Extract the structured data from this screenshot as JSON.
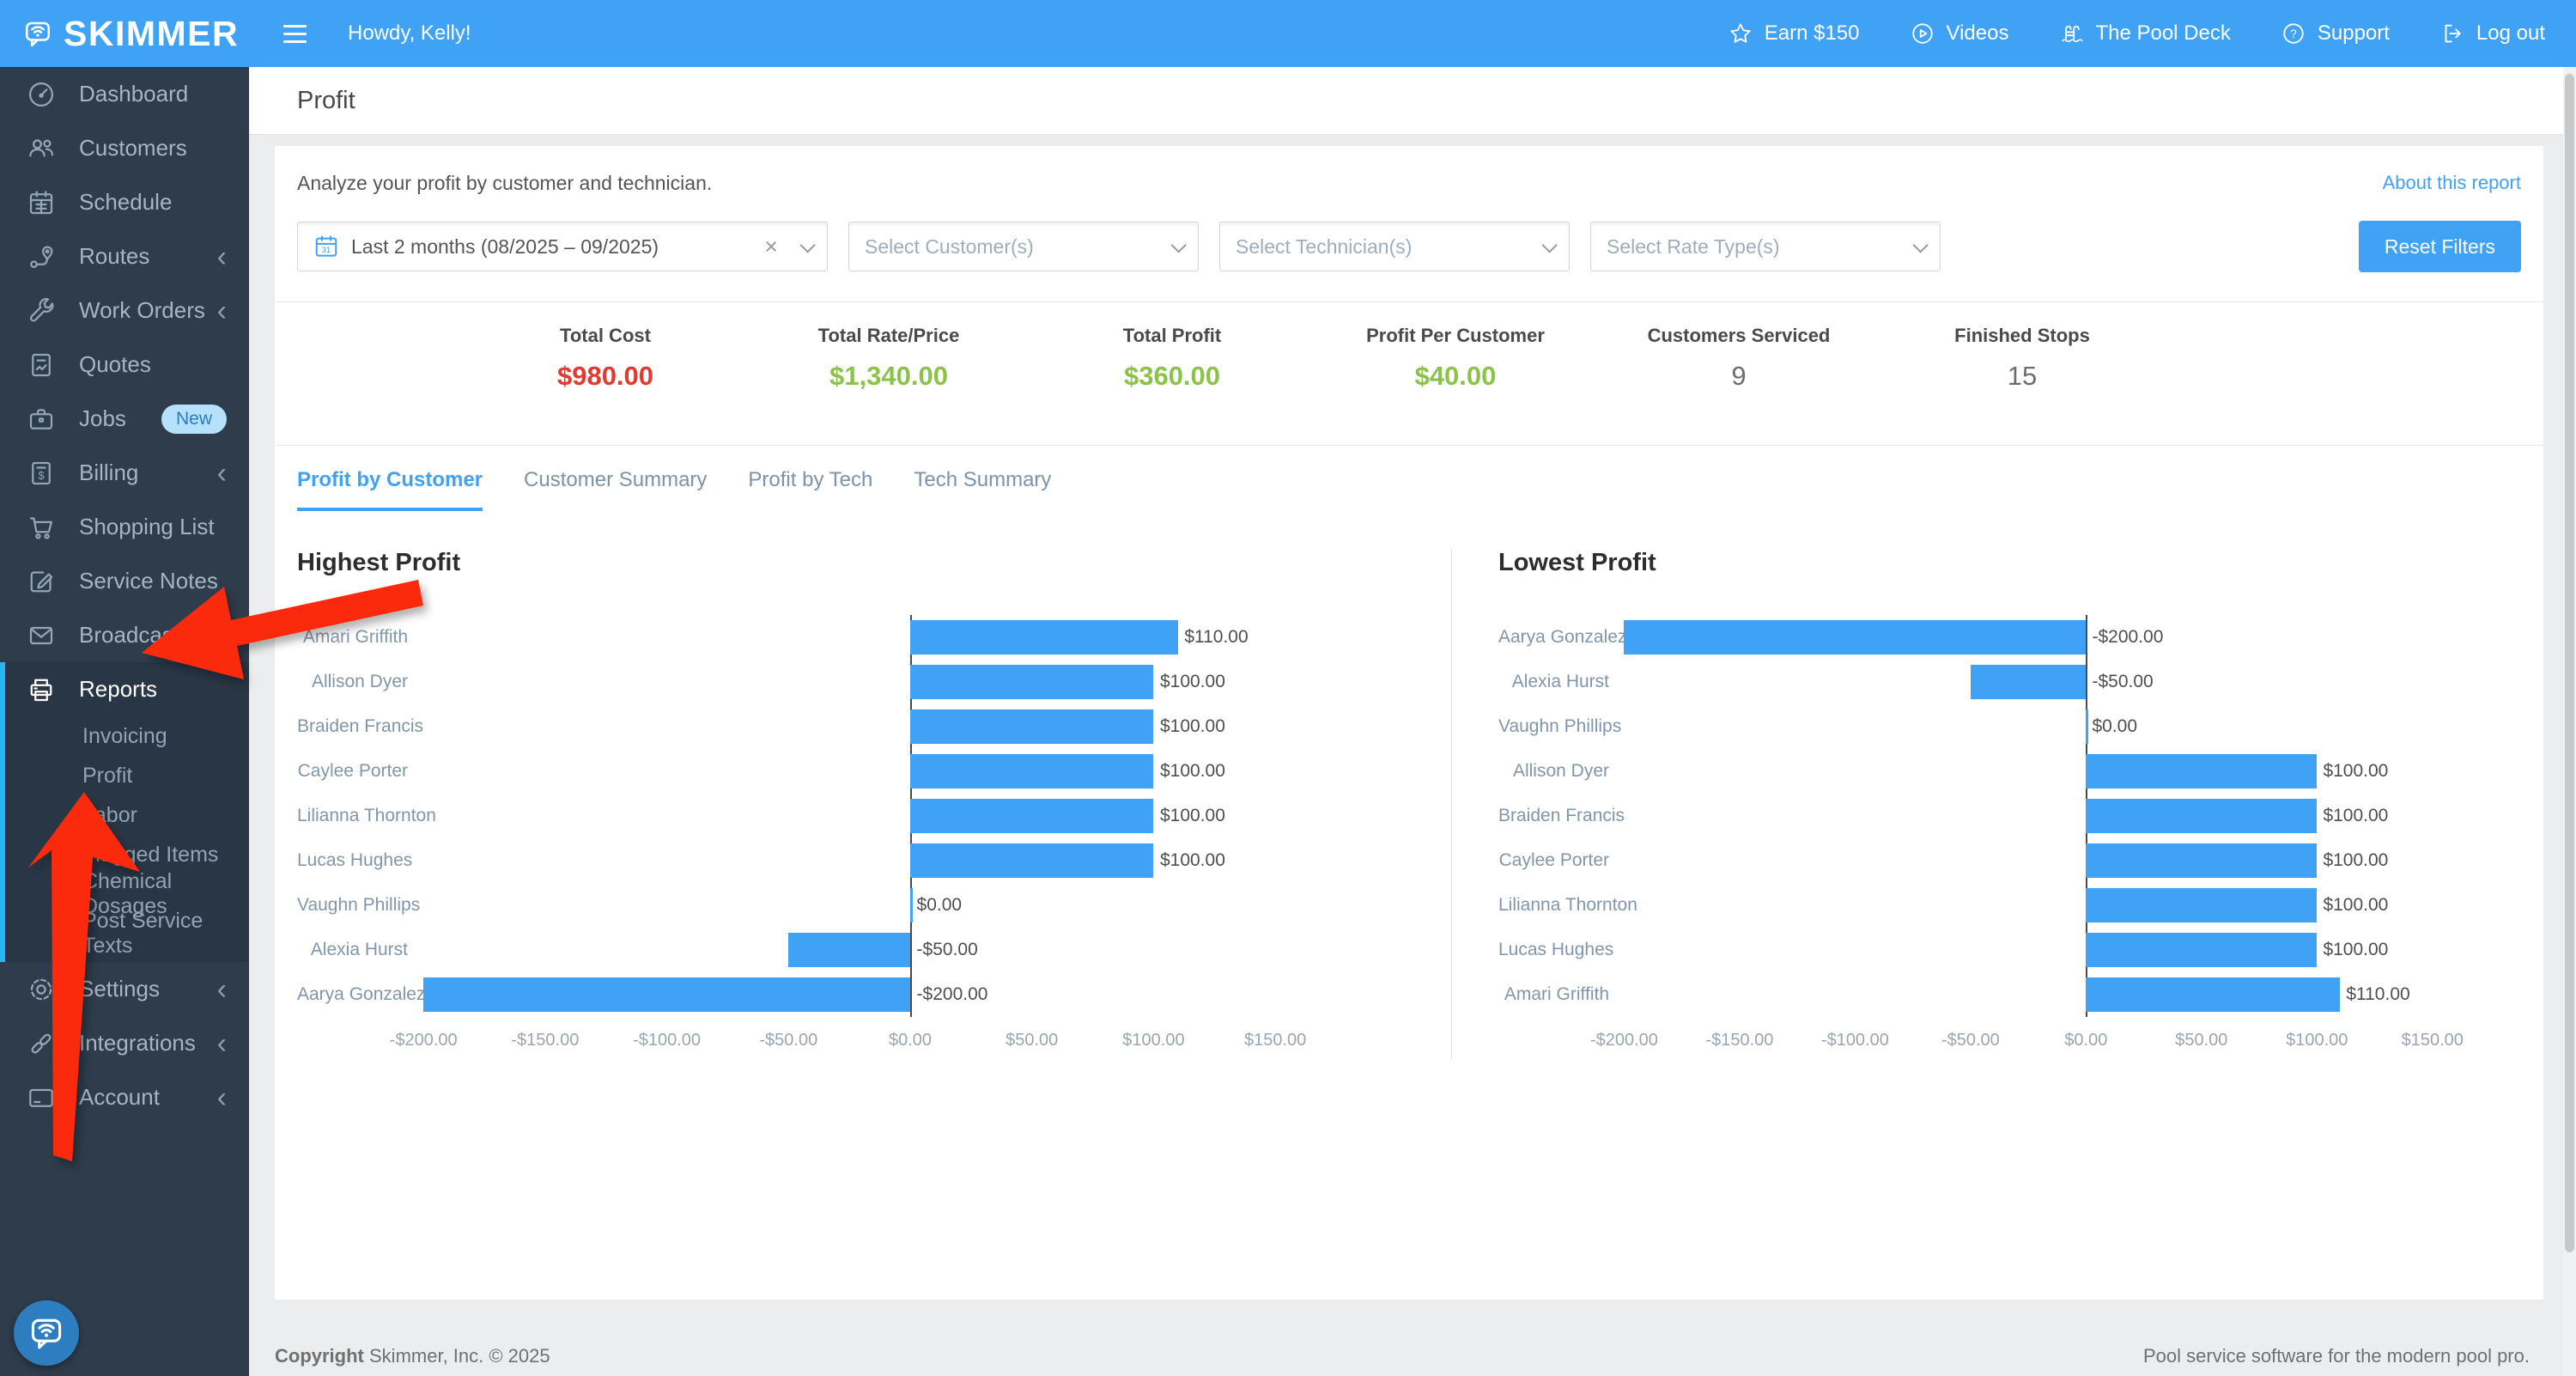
{
  "brand": {
    "name": "SKIMMER"
  },
  "header": {
    "greeting": "Howdy, Kelly!",
    "nav": [
      {
        "id": "earn",
        "label": "Earn $150",
        "icon": "star-icon"
      },
      {
        "id": "videos",
        "label": "Videos",
        "icon": "play-circle-icon"
      },
      {
        "id": "pool-deck",
        "label": "The Pool Deck",
        "icon": "pool-ladder-icon"
      },
      {
        "id": "support",
        "label": "Support",
        "icon": "help-circle-icon"
      },
      {
        "id": "logout",
        "label": "Log out",
        "icon": "logout-icon"
      }
    ]
  },
  "sidebar": {
    "items": [
      {
        "id": "dashboard",
        "label": "Dashboard",
        "icon": "dashboard-icon"
      },
      {
        "id": "customers",
        "label": "Customers",
        "icon": "customers-icon"
      },
      {
        "id": "schedule",
        "label": "Schedule",
        "icon": "schedule-icon"
      },
      {
        "id": "routes",
        "label": "Routes",
        "icon": "routes-icon",
        "chevron": true
      },
      {
        "id": "work-orders",
        "label": "Work Orders",
        "icon": "work-orders-icon",
        "chevron": true
      },
      {
        "id": "quotes",
        "label": "Quotes",
        "icon": "quotes-icon"
      },
      {
        "id": "jobs",
        "label": "Jobs",
        "icon": "jobs-icon",
        "badge": "New"
      },
      {
        "id": "billing",
        "label": "Billing",
        "icon": "billing-icon",
        "chevron": true
      },
      {
        "id": "shopping-list",
        "label": "Shopping List",
        "icon": "shopping-list-icon"
      },
      {
        "id": "service-notes",
        "label": "Service Notes",
        "icon": "service-notes-icon"
      },
      {
        "id": "broadcast-emails",
        "label": "Broadcast Emails",
        "icon": "broadcast-emails-icon"
      },
      {
        "id": "reports",
        "label": "Reports",
        "icon": "reports-icon",
        "active": true,
        "submenu": [
          {
            "id": "invoicing",
            "label": "Invoicing"
          },
          {
            "id": "profit",
            "label": "Profit",
            "active": true
          },
          {
            "id": "labor",
            "label": "Labor"
          },
          {
            "id": "flagged-items",
            "label": "Flagged Items"
          },
          {
            "id": "chemical-dosages",
            "label": "Chemical Dosages"
          },
          {
            "id": "post-service-texts",
            "label": "Post Service Texts"
          }
        ]
      },
      {
        "id": "settings",
        "label": "Settings",
        "icon": "settings-icon",
        "chevron": true
      },
      {
        "id": "integrations",
        "label": "Integrations",
        "icon": "integrations-icon",
        "chevron": true
      },
      {
        "id": "account",
        "label": "Account",
        "icon": "account-icon",
        "chevron": true
      }
    ]
  },
  "page": {
    "title": "Profit"
  },
  "report": {
    "description": "Analyze your profit by customer and technician.",
    "about_link": "About this report",
    "reset_button": "Reset Filters"
  },
  "filters": {
    "date_range": "Last 2 months (08/2025 – 09/2025)",
    "customer_placeholder": "Select Customer(s)",
    "technician_placeholder": "Select Technician(s)",
    "rate_type_placeholder": "Select Rate Type(s)"
  },
  "stats": [
    {
      "label": "Total Cost",
      "value": "$980.00",
      "tone": "negative"
    },
    {
      "label": "Total Rate/Price",
      "value": "$1,340.00",
      "tone": "positive"
    },
    {
      "label": "Total Profit",
      "value": "$360.00",
      "tone": "positive"
    },
    {
      "label": "Profit Per Customer",
      "value": "$40.00",
      "tone": "positive"
    },
    {
      "label": "Customers Serviced",
      "value": "9",
      "tone": "neutral"
    },
    {
      "label": "Finished Stops",
      "value": "15",
      "tone": "neutral"
    }
  ],
  "tabs": [
    {
      "label": "Profit by Customer",
      "active": true
    },
    {
      "label": "Customer Summary",
      "active": false
    },
    {
      "label": "Profit by Tech",
      "active": false
    },
    {
      "label": "Tech Summary",
      "active": false
    }
  ],
  "chart_data": [
    {
      "type": "bar",
      "orientation": "horizontal",
      "title": "Highest Profit",
      "categories": [
        "Amari Griffith",
        "Allison Dyer",
        "Braiden Francis",
        "Caylee Porter",
        "Lilianna Thornton",
        "Lucas Hughes",
        "Vaughn Phillips",
        "Alexia Hurst",
        "Aarya Gonzalez"
      ],
      "values": [
        110,
        100,
        100,
        100,
        100,
        100,
        0,
        -50,
        -200
      ],
      "value_labels": [
        "$110.00",
        "$100.00",
        "$100.00",
        "$100.00",
        "$100.00",
        "$100.00",
        "$0.00",
        "-$50.00",
        "-$200.00"
      ],
      "xticks": {
        "values": [
          -200,
          -150,
          -100,
          -50,
          0,
          50,
          100,
          150
        ],
        "labels": [
          "-$200.00",
          "-$150.00",
          "-$100.00",
          "-$50.00",
          "$0.00",
          "$50.00",
          "$100.00",
          "$150.00"
        ]
      },
      "xlim": [
        -205,
        175
      ],
      "bar_color": "#3fa2f5",
      "grid": false,
      "legend": false
    },
    {
      "type": "bar",
      "orientation": "horizontal",
      "title": "Lowest Profit",
      "categories": [
        "Aarya Gonzalez",
        "Alexia Hurst",
        "Vaughn Phillips",
        "Allison Dyer",
        "Braiden Francis",
        "Caylee Porter",
        "Lilianna Thornton",
        "Lucas Hughes",
        "Amari Griffith"
      ],
      "values": [
        -200,
        -50,
        0,
        100,
        100,
        100,
        100,
        100,
        110
      ],
      "value_labels": [
        "-$200.00",
        "-$50.00",
        "$0.00",
        "$100.00",
        "$100.00",
        "$100.00",
        "$100.00",
        "$100.00",
        "$110.00"
      ],
      "xticks": {
        "values": [
          -200,
          -150,
          -100,
          -50,
          0,
          50,
          100,
          150
        ],
        "labels": [
          "-$200.00",
          "-$150.00",
          "-$100.00",
          "-$50.00",
          "$0.00",
          "$50.00",
          "$100.00",
          "$150.00"
        ]
      },
      "xlim": [
        -205,
        175
      ],
      "bar_color": "#3fa2f5",
      "grid": false,
      "legend": false
    }
  ],
  "annotations": {
    "arrows": [
      {
        "target": "Reports"
      },
      {
        "target": "Profit"
      }
    ],
    "color": "#fb2b11"
  },
  "footer": {
    "copyright_bold": "Copyright",
    "copyright_rest": " Skimmer, Inc. © 2025",
    "tagline": "Pool service software for the modern pool pro."
  },
  "colors": {
    "topbar": "#3fa2f5",
    "sidebar": "#2e3c4b",
    "accent": "#3fa2f5",
    "positive": "#8bc34a",
    "negative": "#e23a30",
    "bar": "#3fa2f5"
  }
}
